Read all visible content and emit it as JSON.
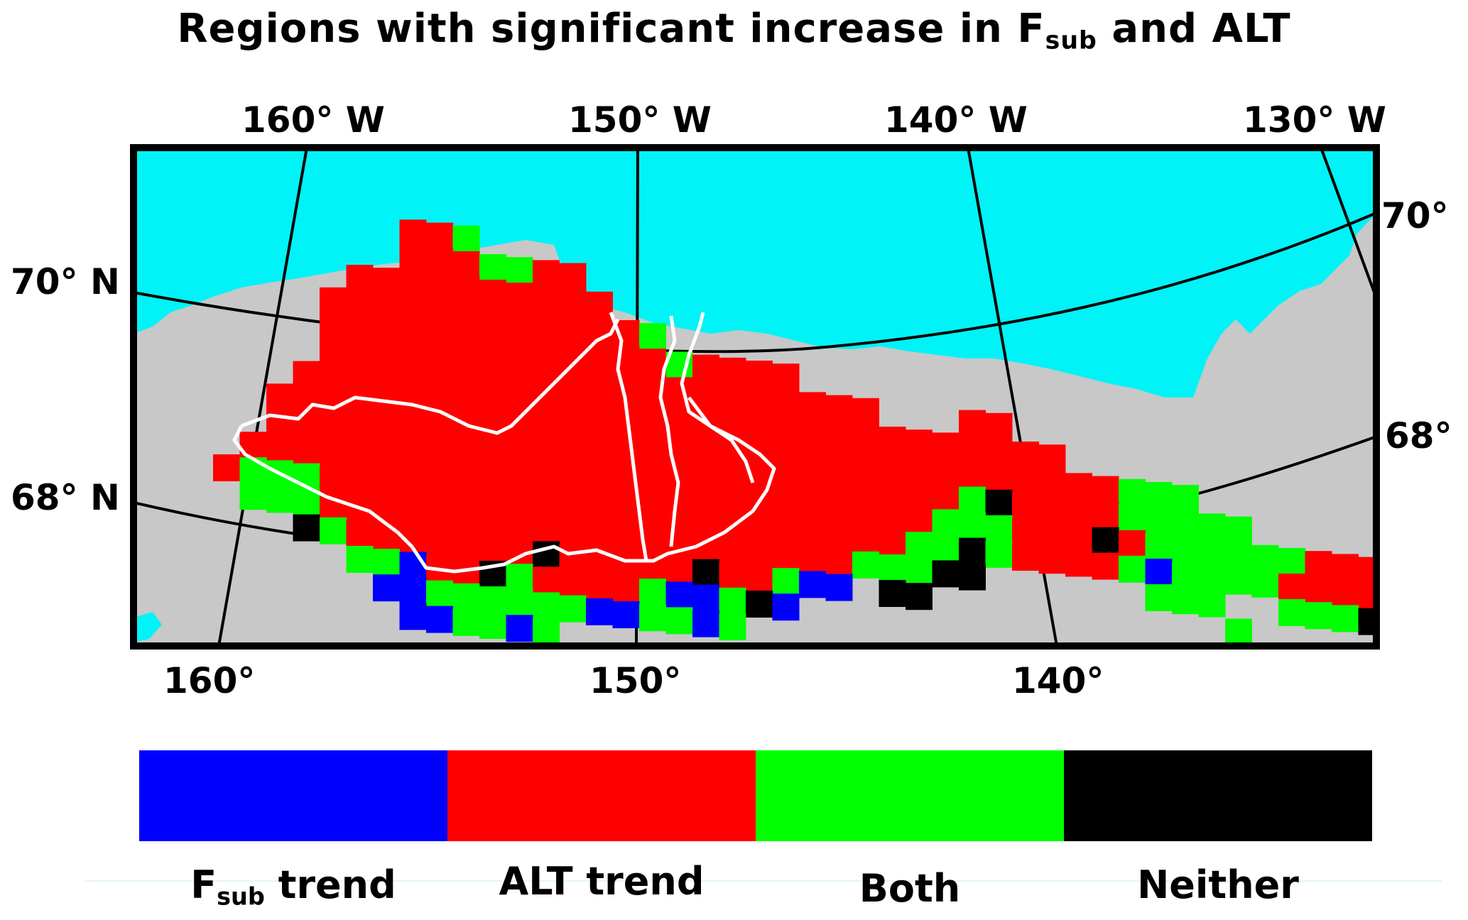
{
  "title": {
    "main": "Regions with significant increase in F",
    "sub": "sub",
    "tail": " and ALT"
  },
  "map": {
    "top_lon_labels": [
      "160° W",
      "150° W",
      "140° W",
      "130° W"
    ],
    "bottom_lon_labels": [
      "160°",
      "150°",
      "140°"
    ],
    "left_lat_labels": [
      "70° N",
      "68° N"
    ],
    "right_lat_labels": [
      "70°",
      "68°"
    ],
    "colors": {
      "ocean": "#00f3f7",
      "land": "#c8c8c8",
      "frame": "#000000",
      "boundary": "#ffffff"
    }
  },
  "legend": [
    {
      "label": "F",
      "sub": "sub",
      "tail": " trend",
      "color": "#0000ff"
    },
    {
      "label": "ALT trend",
      "sub": "",
      "tail": "",
      "color": "#ff0000"
    },
    {
      "label": "Both",
      "sub": "",
      "tail": "",
      "color": "#00ff00"
    },
    {
      "label": "Neither",
      "sub": "",
      "tail": "",
      "color": "#000000"
    }
  ]
}
